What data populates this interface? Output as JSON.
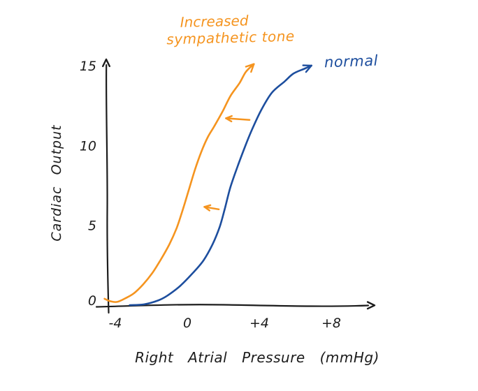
{
  "colors": {
    "orange": "#F5941F",
    "blue": "#1D4E9E",
    "ink": "#1C1C1C",
    "background": "#FFFFFF"
  },
  "chart_data": {
    "type": "line",
    "title": "",
    "xlabel": "Right Atrial Pressure (mmHg)",
    "ylabel": "Cardiac Output",
    "xlim": [
      -5.1,
      10.4
    ],
    "ylim": [
      0,
      15.4
    ],
    "grid": false,
    "legend_position": "inline-annotations",
    "x_ticks": [
      {
        "value": -4,
        "label": "-4"
      },
      {
        "value": 0,
        "label": "0"
      },
      {
        "value": 4,
        "label": "+4"
      },
      {
        "value": 8,
        "label": "+8"
      }
    ],
    "y_ticks": [
      {
        "value": 0,
        "label": "0"
      },
      {
        "value": 5,
        "label": "5"
      },
      {
        "value": 10,
        "label": "10"
      },
      {
        "value": 15,
        "label": "15"
      }
    ],
    "series": [
      {
        "name": "normal",
        "color": "#1D4E9E",
        "label_lines": [
          "normal"
        ],
        "ends_with_arrow": true,
        "points": [
          [
            -3.2,
            0.0
          ],
          [
            -2.4,
            0.05
          ],
          [
            -1.6,
            0.3
          ],
          [
            -1.1,
            0.6
          ],
          [
            -0.4,
            1.2
          ],
          [
            0.3,
            2.0
          ],
          [
            0.9,
            2.8
          ],
          [
            1.4,
            3.8
          ],
          [
            1.8,
            4.9
          ],
          [
            2.1,
            6.1
          ],
          [
            2.4,
            7.4
          ],
          [
            2.8,
            8.7
          ],
          [
            3.2,
            9.9
          ],
          [
            3.6,
            11.0
          ],
          [
            4.1,
            12.2
          ],
          [
            4.7,
            13.3
          ],
          [
            5.4,
            14.0
          ],
          [
            5.9,
            14.5
          ],
          [
            6.5,
            14.8
          ],
          [
            6.9,
            15.0
          ]
        ]
      },
      {
        "name": "increased-sympathetic-tone",
        "color": "#F5941F",
        "label_lines": [
          "Increased",
          "sympathetic tone"
        ],
        "ends_with_arrow": true,
        "points": [
          [
            -4.6,
            0.4
          ],
          [
            -4.3,
            0.25
          ],
          [
            -3.9,
            0.2
          ],
          [
            -3.4,
            0.45
          ],
          [
            -2.95,
            0.75
          ],
          [
            -2.45,
            1.3
          ],
          [
            -1.95,
            2.0
          ],
          [
            -1.5,
            2.8
          ],
          [
            -1.0,
            3.8
          ],
          [
            -0.6,
            4.8
          ],
          [
            -0.27,
            5.9
          ],
          [
            0.08,
            7.2
          ],
          [
            0.43,
            8.5
          ],
          [
            0.78,
            9.6
          ],
          [
            1.13,
            10.5
          ],
          [
            1.5,
            11.2
          ],
          [
            1.95,
            12.1
          ],
          [
            2.4,
            13.1
          ],
          [
            2.9,
            13.9
          ],
          [
            3.25,
            14.6
          ],
          [
            3.7,
            15.1
          ]
        ]
      }
    ],
    "annotations": {
      "shift_arrows": [
        {
          "from": [
            3.46,
            11.6
          ],
          "to": [
            2.15,
            11.7
          ],
          "color": "#F5941F"
        },
        {
          "from": [
            1.75,
            6.0
          ],
          "to": [
            0.95,
            6.15
          ],
          "color": "#F5941F"
        }
      ]
    }
  }
}
